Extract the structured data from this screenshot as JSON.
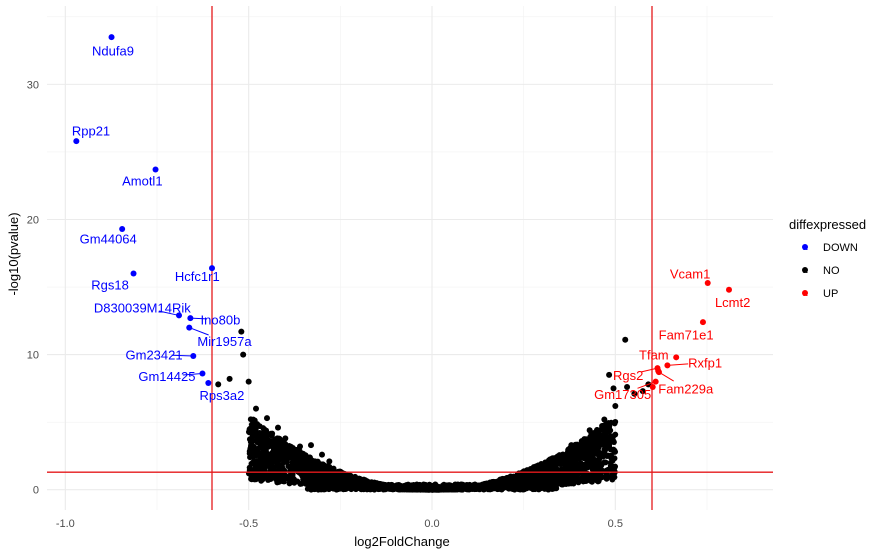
{
  "chart_data": {
    "type": "scatter",
    "title": "",
    "xlabel": "log2FoldChange",
    "ylabel": "-log10(pvalue)",
    "xlim": [
      -1.05,
      0.93
    ],
    "ylim": [
      -1.5,
      35.8
    ],
    "x_ticks": [
      -1.0,
      -0.5,
      0.0,
      0.5
    ],
    "x_tick_labels": [
      "-1.0",
      "-0.5",
      "0.0",
      "0.5"
    ],
    "y_ticks": [
      0,
      10,
      20,
      30
    ],
    "y_tick_labels": [
      "0",
      "10",
      "20",
      "30"
    ],
    "thresholds": {
      "x": [
        -0.6,
        0.6
      ],
      "y": 1.3
    },
    "threshold_color": "#e41a1c",
    "legend": {
      "title": "diffexpressed",
      "position": "right",
      "items": [
        {
          "label": "DOWN",
          "color": "#0000ff",
          "key_letter": "a"
        },
        {
          "label": "NO",
          "color": "#000000",
          "key_letter": "a"
        },
        {
          "label": "UP",
          "color": "#ff0000",
          "key_letter": "a"
        }
      ]
    },
    "down": {
      "color": "#0000ff",
      "points": [
        {
          "gene": "Ndufa9",
          "x": -0.874,
          "y": 33.5,
          "lx": -0.87,
          "ly": 32.5
        },
        {
          "gene": "Rpp21",
          "x": -0.97,
          "y": 25.8,
          "lx": -0.93,
          "ly": 26.6
        },
        {
          "gene": "Amotl1",
          "x": -0.754,
          "y": 23.7,
          "lx": -0.79,
          "ly": 22.9
        },
        {
          "gene": "Gm44064",
          "x": -0.845,
          "y": 19.3,
          "lx": -0.883,
          "ly": 18.6
        },
        {
          "gene": "Rgs18",
          "x": -0.814,
          "y": 16.0,
          "lx": -0.878,
          "ly": 15.2
        },
        {
          "gene": "Hcfc1r1",
          "x": -0.6,
          "y": 16.4,
          "lx": -0.64,
          "ly": 15.8
        },
        {
          "gene": "D830039M14Rik",
          "x": -0.69,
          "y": 12.9,
          "lx": -0.79,
          "ly": 13.5
        },
        {
          "gene": "Ino80b",
          "x": -0.659,
          "y": 12.7,
          "lx": -0.577,
          "ly": 12.6
        },
        {
          "gene": "Mir1957a",
          "x": -0.662,
          "y": 12.0,
          "lx": -0.566,
          "ly": 11.0
        },
        {
          "gene": "Gm23421",
          "x": -0.651,
          "y": 9.9,
          "lx": -0.758,
          "ly": 10.0
        },
        {
          "gene": "Gm14425",
          "x": -0.626,
          "y": 8.6,
          "lx": -0.723,
          "ly": 8.4
        },
        {
          "gene": "Rps3a2",
          "x": -0.61,
          "y": 7.9,
          "lx": -0.573,
          "ly": 7.0
        }
      ]
    },
    "up": {
      "color": "#ff0000",
      "points": [
        {
          "gene": "Vcam1",
          "x": 0.752,
          "y": 15.3,
          "lx": 0.704,
          "ly": 16.0
        },
        {
          "gene": "Lcmt2",
          "x": 0.81,
          "y": 14.8,
          "lx": 0.82,
          "ly": 13.9
        },
        {
          "gene": "Fam71e1",
          "x": 0.739,
          "y": 12.4,
          "lx": 0.693,
          "ly": 11.5
        },
        {
          "gene": "Tfam",
          "x": 0.666,
          "y": 9.8,
          "lx": 0.605,
          "ly": 10.0
        },
        {
          "gene": "Rxfp1",
          "x": 0.642,
          "y": 9.2,
          "lx": 0.745,
          "ly": 9.4
        },
        {
          "gene": "Rgs2",
          "x": 0.615,
          "y": 9.0,
          "lx": 0.535,
          "ly": 8.5
        },
        {
          "gene": "Fam229a",
          "x": 0.619,
          "y": 8.7,
          "lx": 0.692,
          "ly": 7.5
        },
        {
          "gene": "Gm17305",
          "x": 0.61,
          "y": 8.0,
          "lx": 0.52,
          "ly": 7.1
        },
        {
          "gene": "",
          "x": 0.617,
          "y": 8.8
        },
        {
          "gene": "",
          "x": 0.602,
          "y": 7.6
        }
      ]
    },
    "not_significant": {
      "color": "#000000",
      "described_as": "dense V-shaped cloud of ~thousands of genes, |log2FC| < 0.6, -log10(p) mostly below 12",
      "points": [
        [
          -0.52,
          11.7
        ],
        [
          -0.515,
          10.0
        ],
        [
          -0.5,
          8.0
        ],
        [
          -0.552,
          8.2
        ],
        [
          -0.583,
          7.8
        ],
        [
          0.527,
          11.1
        ],
        [
          0.483,
          8.5
        ],
        [
          0.495,
          7.5
        ],
        [
          0.532,
          7.6
        ],
        [
          0.552,
          7.1
        ],
        [
          0.575,
          7.3
        ],
        [
          0.59,
          7.8
        ],
        [
          0.5,
          6.2
        ],
        [
          0.47,
          5.2
        ],
        [
          0.43,
          4.4
        ],
        [
          0.46,
          3.9
        ],
        [
          0.38,
          3.3
        ],
        [
          0.35,
          2.4
        ],
        [
          0.29,
          1.8
        ],
        [
          -0.48,
          6.0
        ],
        [
          -0.45,
          5.3
        ],
        [
          -0.42,
          4.6
        ],
        [
          -0.4,
          3.8
        ],
        [
          -0.36,
          3.2
        ],
        [
          -0.33,
          3.3
        ],
        [
          -0.3,
          2.6
        ],
        [
          -0.28,
          2.1
        ],
        [
          -0.47,
          4.2
        ],
        [
          -0.44,
          3.6
        ],
        [
          0.41,
          3.1
        ]
      ]
    }
  }
}
